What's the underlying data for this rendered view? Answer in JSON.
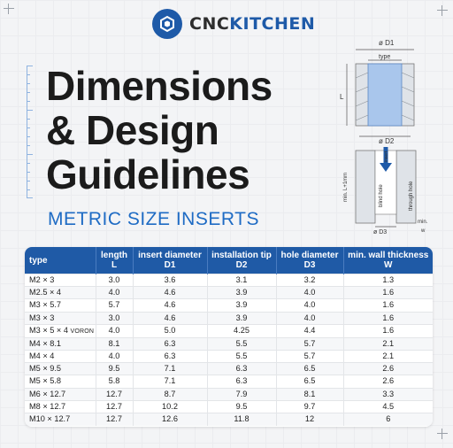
{
  "brand": {
    "part1": "CNC",
    "part2": "KITCHEN"
  },
  "title": [
    "Dimensions",
    "& Design",
    "Guidelines"
  ],
  "subtitle": "METRIC SIZE INSERTS",
  "diagram": {
    "d1": "ø D1",
    "type": "type",
    "l": "L",
    "d2": "ø D2",
    "insert": "insert",
    "min_l": "min. L+1mm",
    "blind_hole": "blind hole",
    "through_hole": "through hole",
    "d3": "ø D3",
    "min_w_1": "min.",
    "min_w_2": "w"
  },
  "table": {
    "headers": [
      {
        "line1": "type",
        "line2": ""
      },
      {
        "line1": "length",
        "line2": "L"
      },
      {
        "line1": "insert diameter",
        "line2": "D1"
      },
      {
        "line1": "installation tip",
        "line2": "D2"
      },
      {
        "line1": "hole diameter",
        "line2": "D3"
      },
      {
        "line1": "min. wall thickness",
        "line2": "W"
      }
    ],
    "rows": [
      {
        "type": "M2 × 3",
        "suffix": "",
        "L": "3.0",
        "D1": "3.6",
        "D2": "3.1",
        "D3": "3.2",
        "W": "1.3"
      },
      {
        "type": "M2.5 × 4",
        "suffix": "",
        "L": "4.0",
        "D1": "4.6",
        "D2": "3.9",
        "D3": "4.0",
        "W": "1.6"
      },
      {
        "type": "M3 × 5.7",
        "suffix": "",
        "L": "5.7",
        "D1": "4.6",
        "D2": "3.9",
        "D3": "4.0",
        "W": "1.6"
      },
      {
        "type": "M3 × 3",
        "suffix": "",
        "L": "3.0",
        "D1": "4.6",
        "D2": "3.9",
        "D3": "4.0",
        "W": "1.6"
      },
      {
        "type": "M3 × 5 × 4",
        "suffix": "VORON",
        "L": "4.0",
        "D1": "5.0",
        "D2": "4.25",
        "D3": "4.4",
        "W": "1.6"
      },
      {
        "type": "M4 × 8.1",
        "suffix": "",
        "L": "8.1",
        "D1": "6.3",
        "D2": "5.5",
        "D3": "5.7",
        "W": "2.1"
      },
      {
        "type": "M4 × 4",
        "suffix": "",
        "L": "4.0",
        "D1": "6.3",
        "D2": "5.5",
        "D3": "5.7",
        "W": "2.1"
      },
      {
        "type": "M5 × 9.5",
        "suffix": "",
        "L": "9.5",
        "D1": "7.1",
        "D2": "6.3",
        "D3": "6.5",
        "W": "2.6"
      },
      {
        "type": "M5 × 5.8",
        "suffix": "",
        "L": "5.8",
        "D1": "7.1",
        "D2": "6.3",
        "D3": "6.5",
        "W": "2.6"
      },
      {
        "type": "M6 × 12.7",
        "suffix": "",
        "L": "12.7",
        "D1": "8.7",
        "D2": "7.9",
        "D3": "8.1",
        "W": "3.3"
      },
      {
        "type": "M8 × 12.7",
        "suffix": "",
        "L": "12.7",
        "D1": "10.2",
        "D2": "9.5",
        "D3": "9.7",
        "W": "4.5"
      },
      {
        "type": "M10 × 12.7",
        "suffix": "",
        "L": "12.7",
        "D1": "12.6",
        "D2": "11.8",
        "D3": "12",
        "W": "6"
      }
    ]
  },
  "colors": {
    "accent": "#1e5aa8",
    "table_header": "#1f5aa6",
    "subtitle": "#1e6bc4"
  }
}
